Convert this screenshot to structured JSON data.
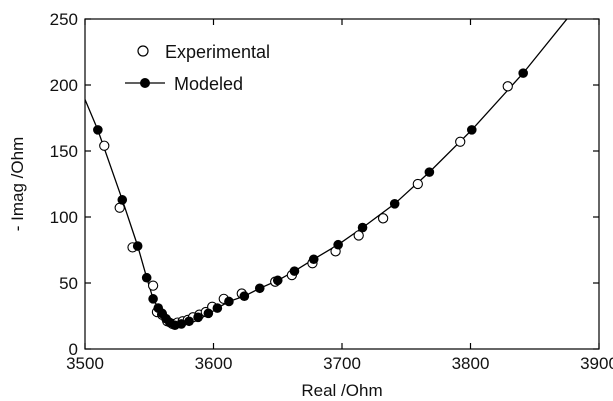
{
  "chart_data": {
    "type": "scatter",
    "title": "",
    "xlabel": "Real /Ohm",
    "ylabel": "- Imag /Ohm",
    "xlim": [
      3500,
      3900
    ],
    "ylim": [
      0,
      250
    ],
    "x_ticks": [
      "3500",
      "3600",
      "3700",
      "3800",
      "3900"
    ],
    "y_ticks": [
      "0",
      "50",
      "100",
      "150",
      "200",
      "250"
    ],
    "grid": false,
    "legend_position": "top-left",
    "series": [
      {
        "name": "Experimental",
        "marker": "open-circle",
        "line": false,
        "points": [
          [
            3515,
            154
          ],
          [
            3527,
            107
          ],
          [
            3537,
            77
          ],
          [
            3553,
            48
          ],
          [
            3556,
            28
          ],
          [
            3560,
            26
          ],
          [
            3564,
            21
          ],
          [
            3568,
            19
          ],
          [
            3572,
            20
          ],
          [
            3576,
            21
          ],
          [
            3580,
            22
          ],
          [
            3584,
            24
          ],
          [
            3589,
            26
          ],
          [
            3594,
            28
          ],
          [
            3599,
            32
          ],
          [
            3608,
            38
          ],
          [
            3622,
            42
          ],
          [
            3648,
            51
          ],
          [
            3661,
            56
          ],
          [
            3677,
            65
          ],
          [
            3695,
            74
          ],
          [
            3713,
            86
          ],
          [
            3732,
            99
          ],
          [
            3759,
            125
          ],
          [
            3792,
            157
          ],
          [
            3829,
            199
          ]
        ]
      },
      {
        "name": "Modeled",
        "marker": "filled-circle",
        "line": true,
        "points": [
          [
            3510,
            166
          ],
          [
            3529,
            113
          ],
          [
            3541,
            78
          ],
          [
            3548,
            54
          ],
          [
            3553,
            38
          ],
          [
            3557,
            31
          ],
          [
            3560,
            27
          ],
          [
            3563,
            23
          ],
          [
            3566,
            20
          ],
          [
            3570,
            18
          ],
          [
            3575,
            19
          ],
          [
            3581,
            21
          ],
          [
            3588,
            24
          ],
          [
            3596,
            27
          ],
          [
            3603,
            31
          ],
          [
            3612,
            36
          ],
          [
            3624,
            40
          ],
          [
            3636,
            46
          ],
          [
            3650,
            52
          ],
          [
            3663,
            59
          ],
          [
            3678,
            68
          ],
          [
            3697,
            79
          ],
          [
            3716,
            92
          ],
          [
            3741,
            110
          ],
          [
            3768,
            134
          ],
          [
            3801,
            166
          ],
          [
            3841,
            209
          ]
        ],
        "curve": [
          [
            3500,
            189
          ],
          [
            3510,
            166
          ],
          [
            3529,
            113
          ],
          [
            3541,
            78
          ],
          [
            3548,
            54
          ],
          [
            3553,
            38
          ],
          [
            3557,
            31
          ],
          [
            3560,
            27
          ],
          [
            3563,
            23
          ],
          [
            3566,
            20
          ],
          [
            3570,
            18
          ],
          [
            3575,
            19
          ],
          [
            3581,
            21
          ],
          [
            3588,
            24
          ],
          [
            3596,
            27
          ],
          [
            3603,
            31
          ],
          [
            3612,
            36
          ],
          [
            3624,
            40
          ],
          [
            3636,
            46
          ],
          [
            3650,
            52
          ],
          [
            3663,
            59
          ],
          [
            3678,
            68
          ],
          [
            3697,
            79
          ],
          [
            3716,
            92
          ],
          [
            3741,
            110
          ],
          [
            3768,
            134
          ],
          [
            3801,
            166
          ],
          [
            3841,
            209
          ],
          [
            3880,
            256
          ]
        ]
      }
    ]
  }
}
